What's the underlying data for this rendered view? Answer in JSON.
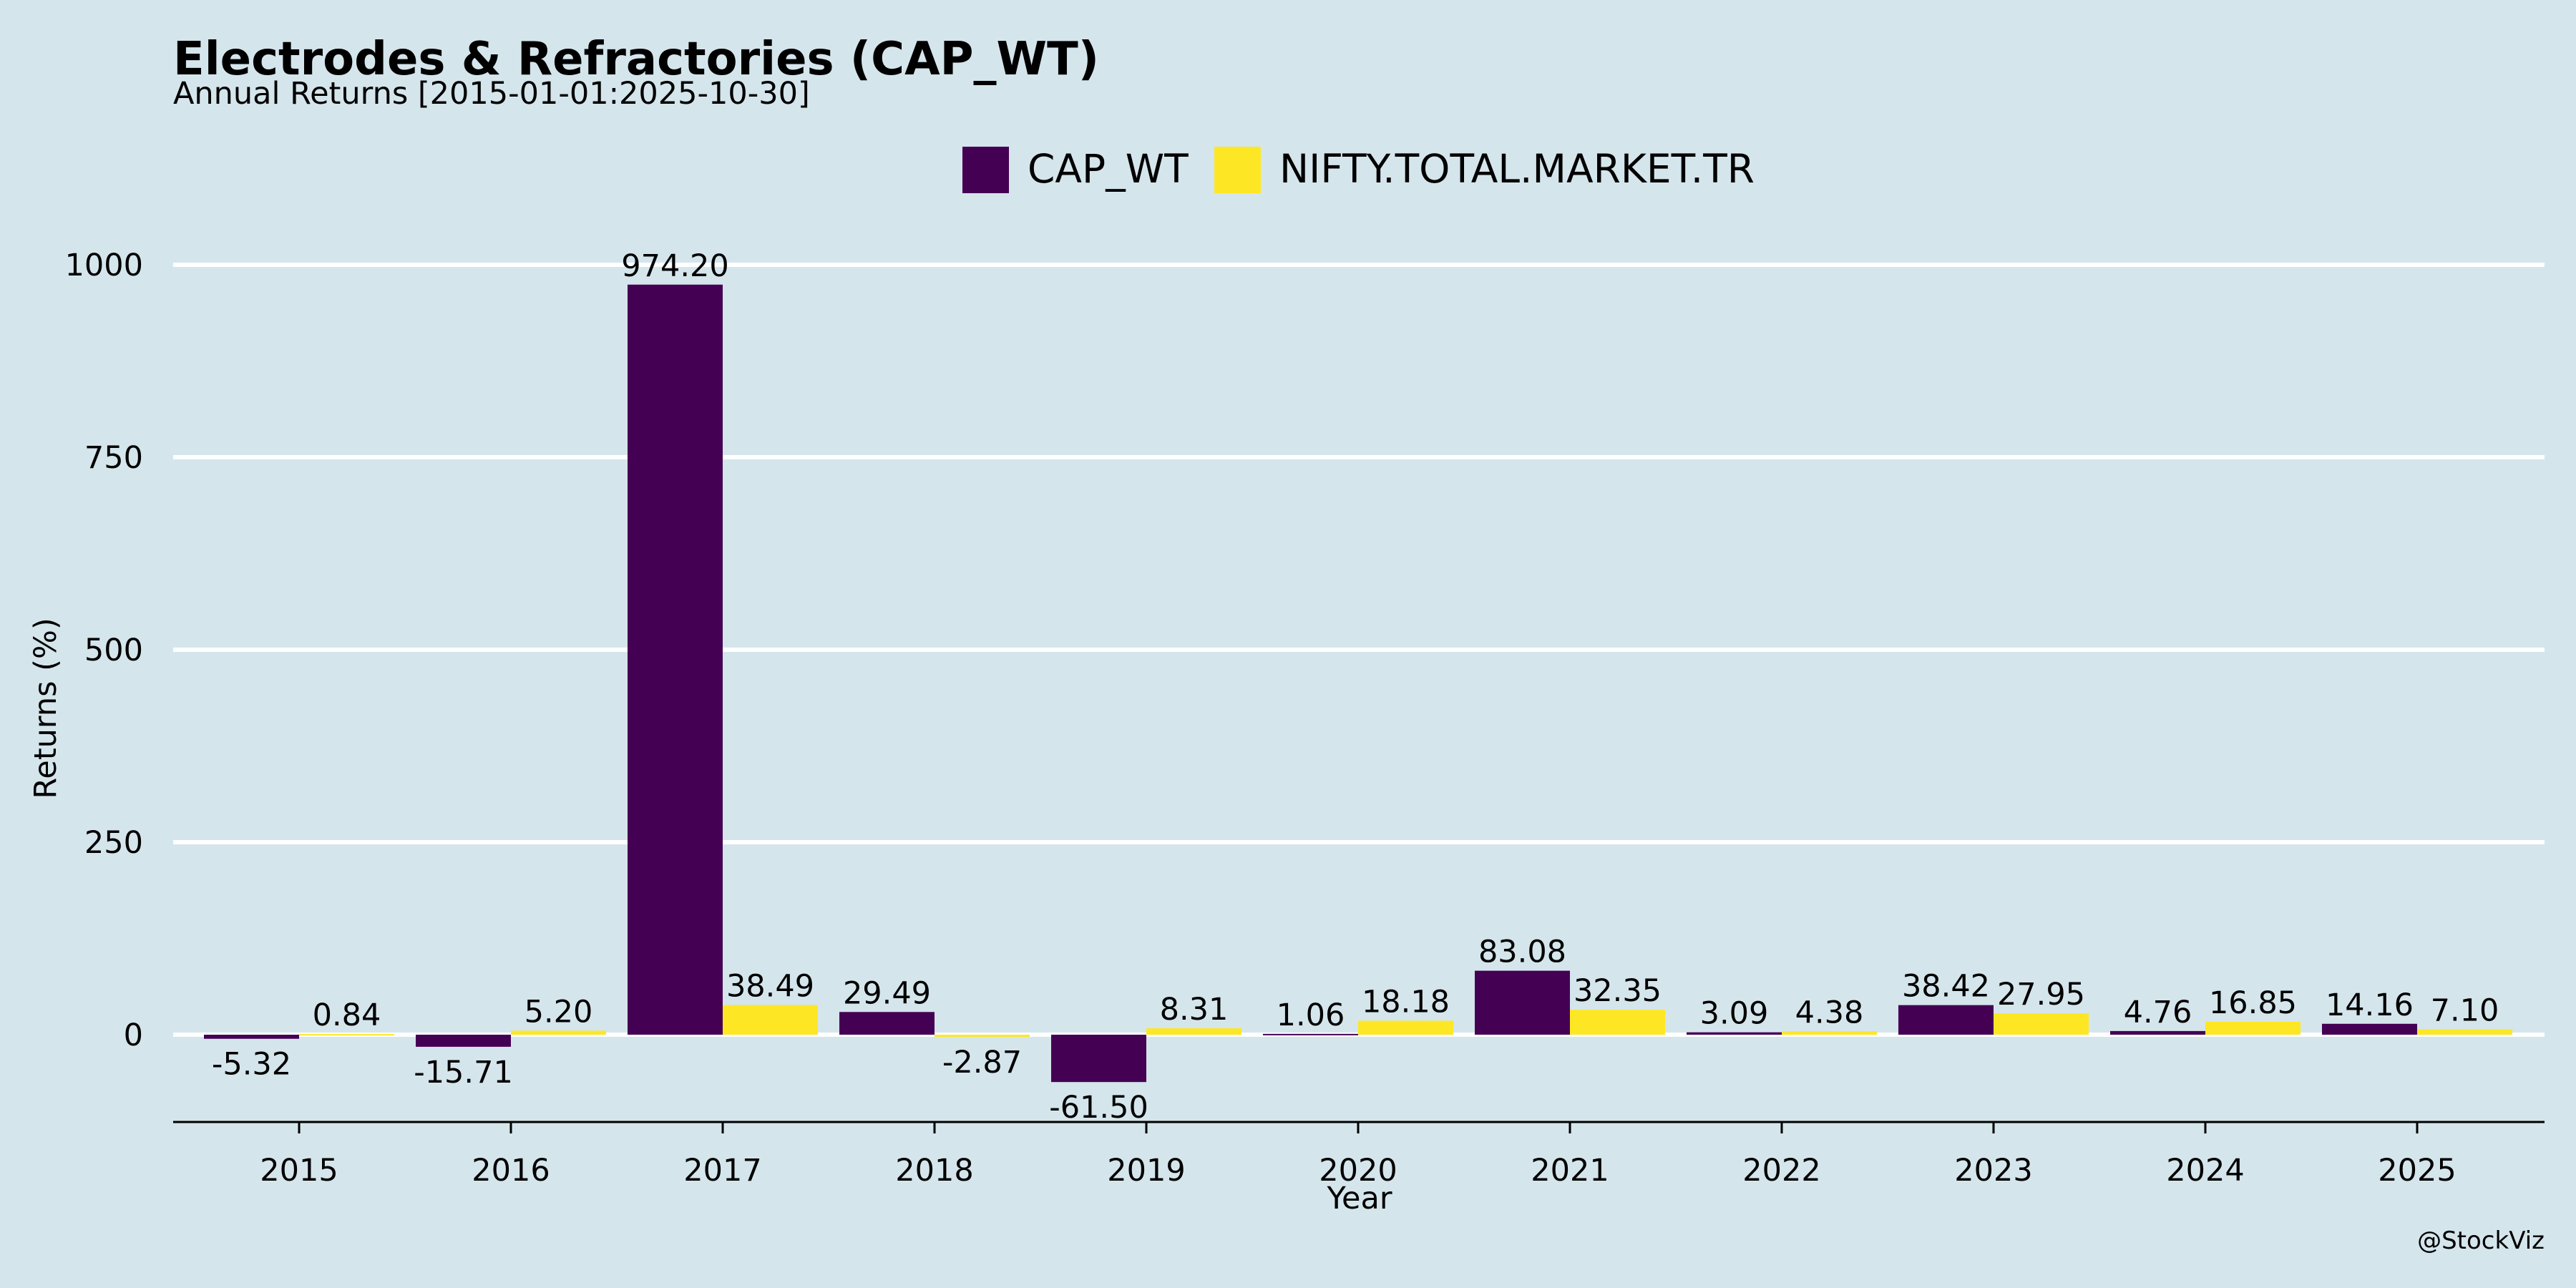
{
  "chart_data": {
    "type": "bar",
    "title": "Electrodes & Refractories (CAP_WT)",
    "subtitle": "Annual Returns [2015-01-01:2025-10-30]",
    "xlabel": "Year",
    "ylabel": "Returns (%)",
    "ylim": [
      -140,
      1060
    ],
    "yticks": [
      0,
      250,
      500,
      750,
      1000
    ],
    "grid": "horizontal",
    "legend_position": "top-center",
    "categories": [
      "2015",
      "2016",
      "2017",
      "2018",
      "2019",
      "2020",
      "2021",
      "2022",
      "2023",
      "2024",
      "2025"
    ],
    "series": [
      {
        "name": "CAP_WT",
        "color": "#440154",
        "values": [
          -5.32,
          -15.71,
          974.2,
          29.49,
          -61.5,
          1.06,
          83.08,
          3.09,
          38.42,
          4.76,
          14.16
        ],
        "labels": [
          "-5.32",
          "-15.71",
          "974.20",
          "29.49",
          "-61.50",
          "1.06",
          "83.08",
          "3.09",
          "38.42",
          "4.76",
          "14.16"
        ]
      },
      {
        "name": "NIFTY.TOTAL.MARKET.TR",
        "color": "#fde725",
        "values": [
          0.84,
          5.2,
          38.49,
          -2.87,
          8.31,
          18.18,
          32.35,
          4.38,
          27.95,
          16.85,
          7.1
        ],
        "labels": [
          "0.84",
          "5.20",
          "38.49",
          "-2.87",
          "8.31",
          "18.18",
          "32.35",
          "4.38",
          "27.95",
          "16.85",
          "7.10"
        ]
      }
    ],
    "credit": "@StockViz",
    "background": "#d5e5ec"
  }
}
